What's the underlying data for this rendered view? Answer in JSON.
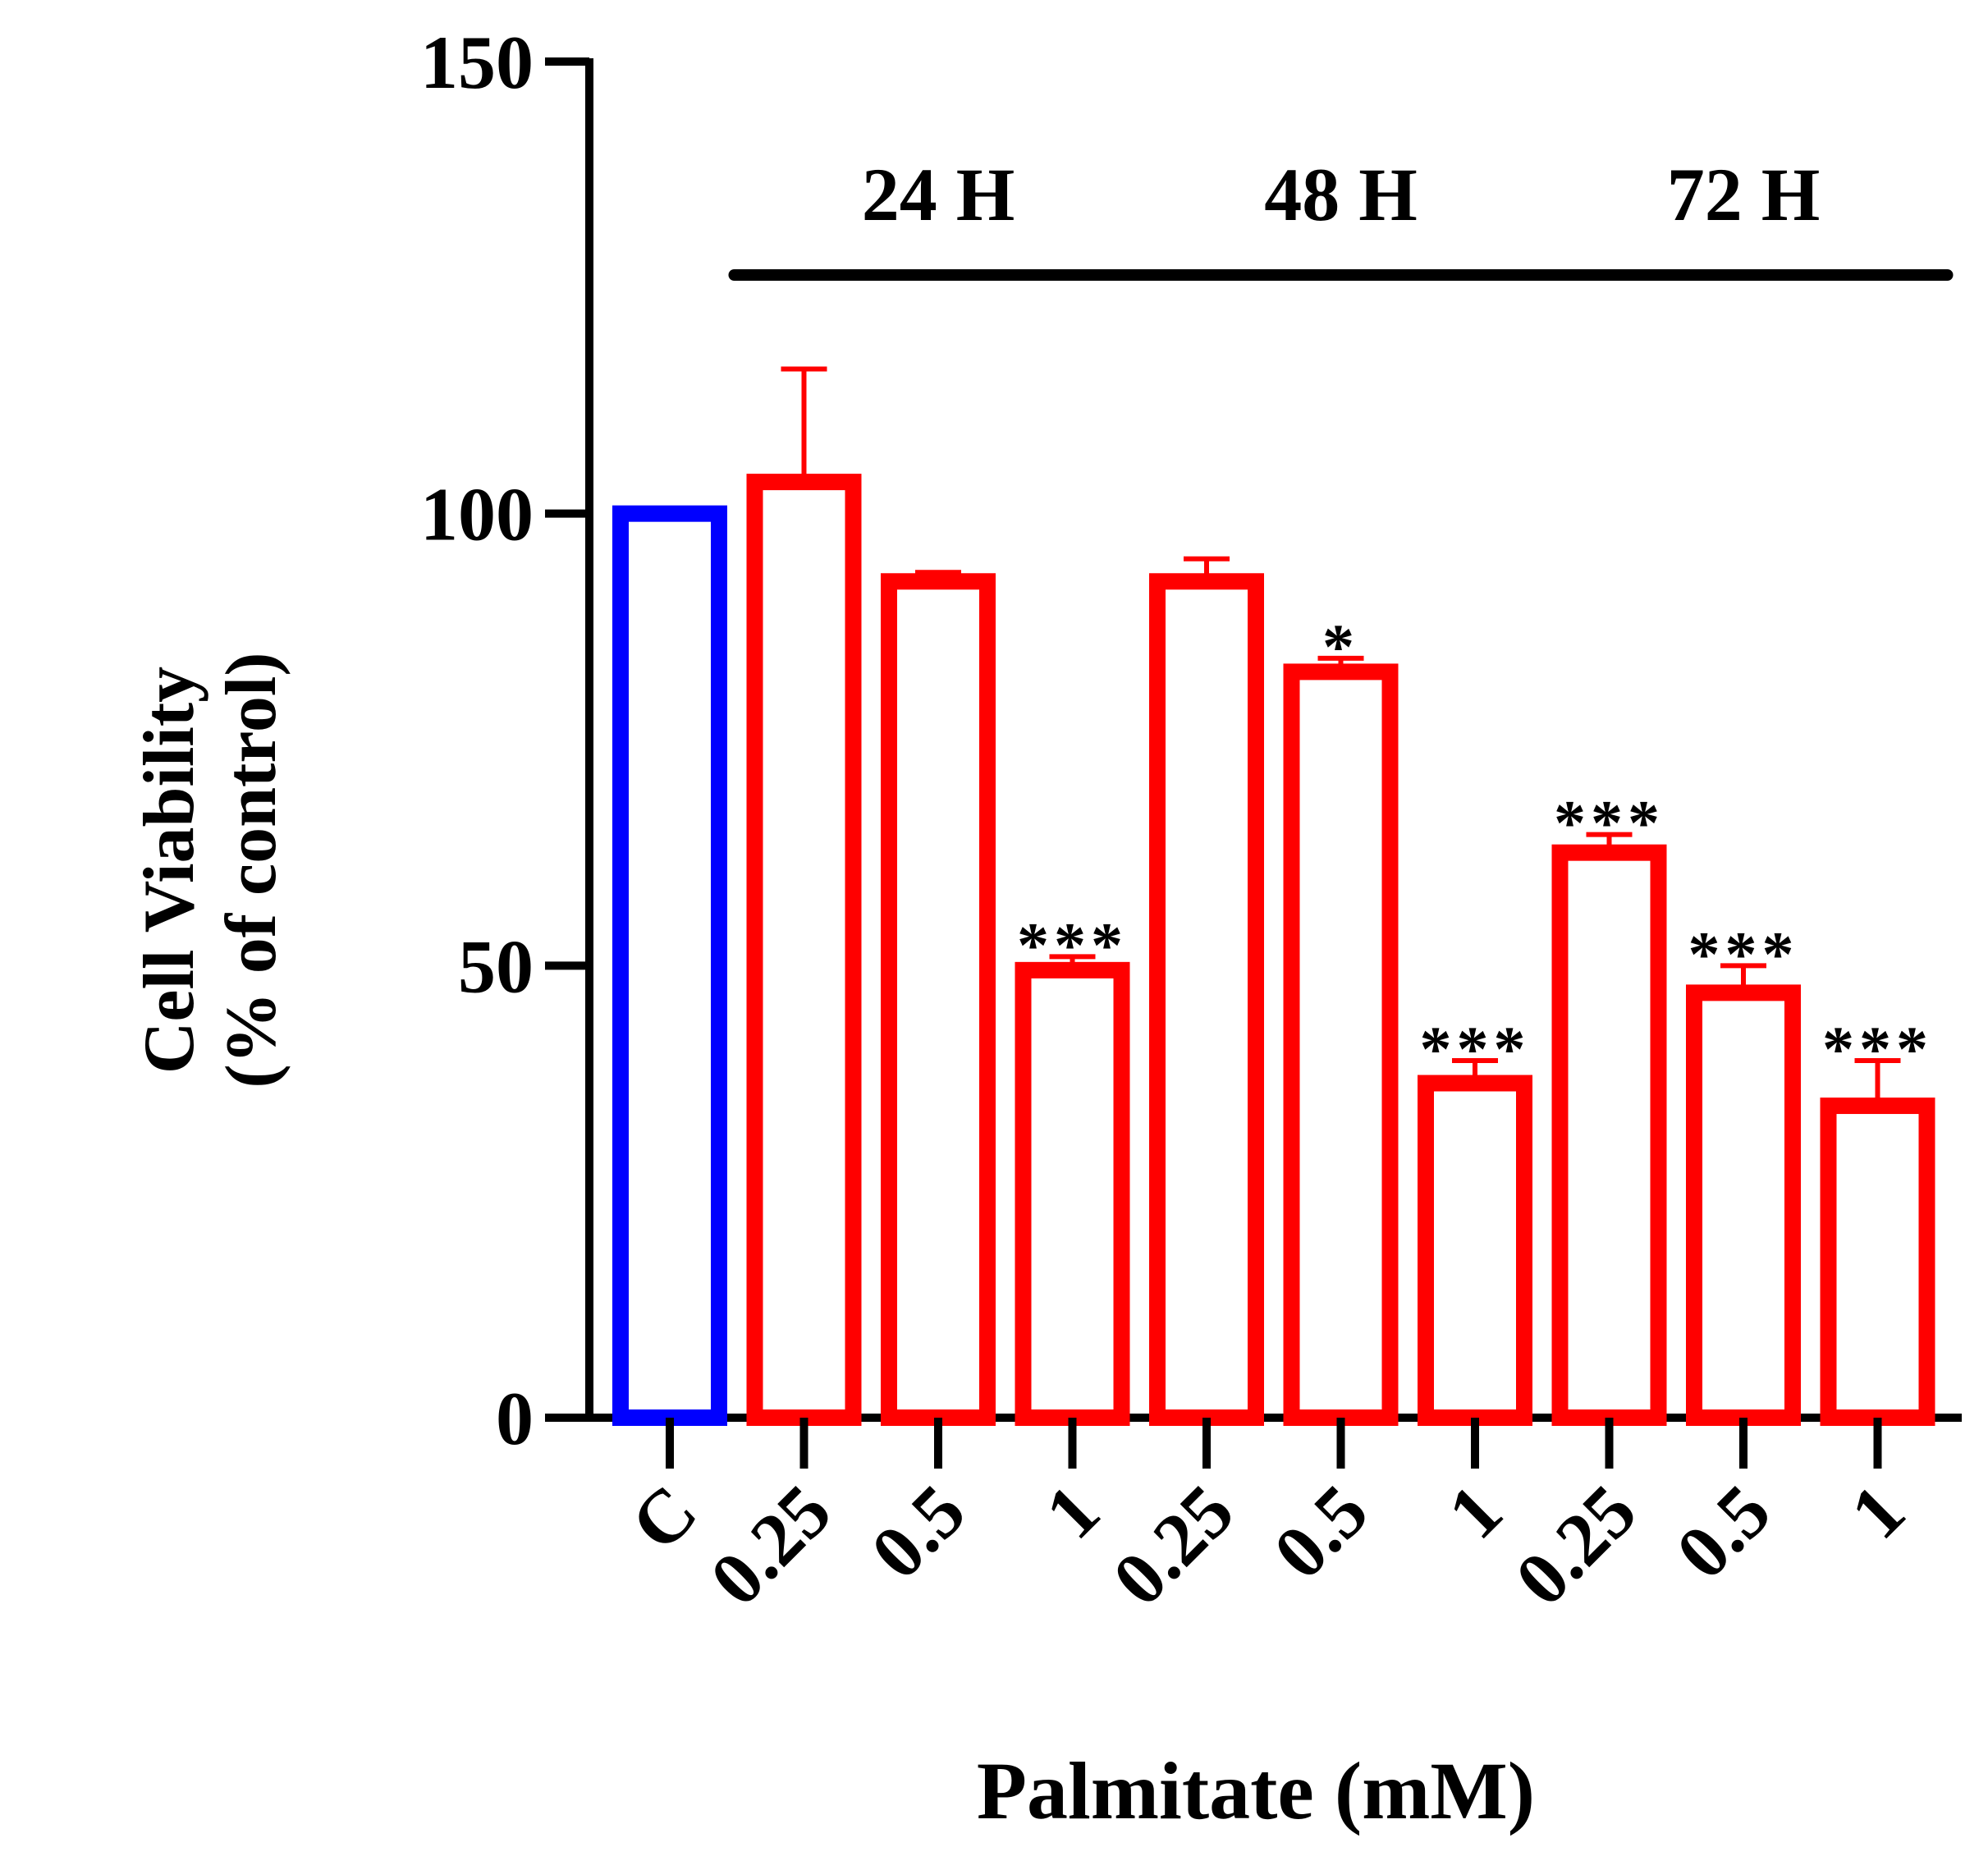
{
  "chart_data": {
    "type": "bar",
    "title": "",
    "xlabel": "Palmitate (mM)",
    "ylabel_lines": [
      "Cell Viability",
      "(% of control)"
    ],
    "ylim": [
      0,
      150
    ],
    "yticks": [
      0,
      50,
      100,
      150
    ],
    "categories": [
      "C",
      "0.25",
      "0.5",
      "1",
      "0.25",
      "0.5",
      "1",
      "0.25",
      "0.5",
      "1"
    ],
    "values": [
      100,
      103.5,
      92.5,
      49.5,
      92.5,
      82.5,
      37,
      62.5,
      47,
      34.5
    ],
    "errors": [
      0,
      12.5,
      1,
      1.5,
      2.5,
      1.5,
      2.5,
      2,
      3,
      5
    ],
    "colors": [
      "#0000ff",
      "#ff0000",
      "#ff0000",
      "#ff0000",
      "#ff0000",
      "#ff0000",
      "#ff0000",
      "#ff0000",
      "#ff0000",
      "#ff0000"
    ],
    "significance": [
      "",
      "",
      "",
      "***",
      "",
      "*",
      "***",
      "***",
      "***",
      "***"
    ],
    "groups": [
      {
        "label": "24 H",
        "from": 1,
        "to": 3
      },
      {
        "label": "48 H",
        "from": 4,
        "to": 6
      },
      {
        "label": "72 H",
        "from": 7,
        "to": 9
      }
    ],
    "grid": false,
    "legend": "none"
  }
}
